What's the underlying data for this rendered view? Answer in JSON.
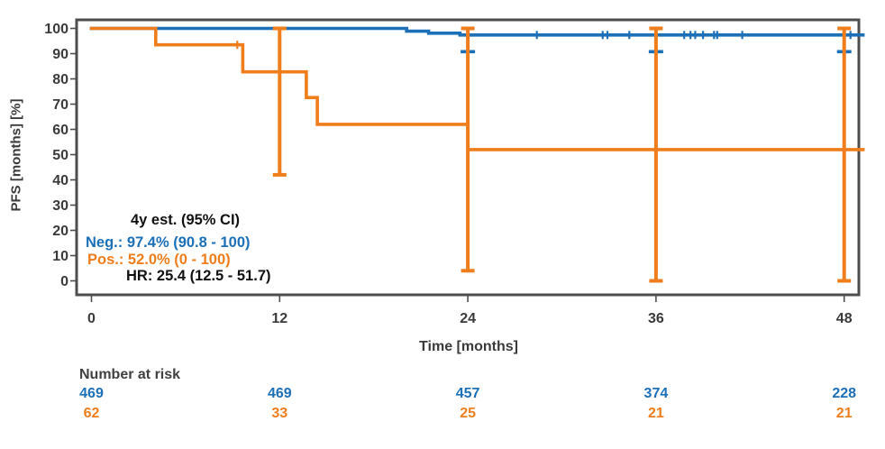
{
  "colors": {
    "neg": "#1b70b8",
    "pos": "#ef7d1b",
    "dark_text": "#111111",
    "axis_text": "#3a3a3a",
    "frame": "#4d4d4d",
    "footer_label": "#404040",
    "background": "#ffffff"
  },
  "annotation": {
    "title": "4y est. (95% CI)",
    "neg_line": "Neg.: 97.4% (90.8 - 100)",
    "pos_line": "Pos.:  52.0% (0 - 100)",
    "hr_line": "HR: 25.4 (12.5 - 51.7)"
  },
  "risk_table": {
    "label": "Number at risk",
    "times": [
      0,
      12,
      24,
      36,
      48
    ],
    "rows": [
      {
        "name": "Neg",
        "color": "#1b70b8",
        "values": [
          "469",
          "469",
          "457",
          "374",
          "228"
        ]
      },
      {
        "name": "Pos",
        "color": "#ef7d1b",
        "values": [
          "62",
          "33",
          "25",
          "21",
          "21"
        ]
      }
    ]
  },
  "chart_data": {
    "type": "line",
    "subtype": "kaplan-meier-step",
    "title": "",
    "xlabel": "Time [months]",
    "ylabel": "PFS [months] [%]",
    "xlim": [
      0,
      49.2
    ],
    "ylim": [
      0,
      100
    ],
    "xticks": [
      0,
      12,
      24,
      36,
      48
    ],
    "yticks": [
      0,
      10,
      20,
      30,
      40,
      50,
      60,
      70,
      80,
      90,
      100
    ],
    "grid": false,
    "legend_position": "none",
    "hazard_ratio": "25.4 (12.5 - 51.7)",
    "series": [
      {
        "name": "Neg.",
        "color": "#1b70b8",
        "estimate_4y": "97.4% (90.8 - 100)",
        "step_points": [
          [
            0,
            100
          ],
          [
            20.1,
            100
          ],
          [
            20.1,
            98.9
          ],
          [
            21.5,
            98.9
          ],
          [
            21.5,
            98.1
          ],
          [
            23.5,
            98.1
          ],
          [
            23.5,
            97.4
          ],
          [
            49.2,
            97.4
          ]
        ],
        "censor_marks": [
          [
            28.4,
            97.4
          ],
          [
            32.6,
            97.4
          ],
          [
            32.9,
            97.4
          ],
          [
            34.3,
            97.4
          ],
          [
            37.8,
            97.4
          ],
          [
            38.2,
            97.4
          ],
          [
            38.5,
            97.4
          ],
          [
            39.0,
            97.4
          ],
          [
            39.7,
            97.4
          ],
          [
            39.9,
            97.4
          ],
          [
            41.5,
            97.4
          ],
          [
            48.4,
            97.4
          ]
        ],
        "ci_dashes": [
          [
            24,
            90.8
          ],
          [
            36,
            90.8
          ],
          [
            48,
            90.8
          ]
        ],
        "error_bars": []
      },
      {
        "name": "Pos.",
        "color": "#ef7d1b",
        "estimate_4y": "52.0% (0 - 100)",
        "step_points": [
          [
            0,
            100
          ],
          [
            4.1,
            100
          ],
          [
            4.1,
            93.5
          ],
          [
            9.65,
            93.5
          ],
          [
            9.65,
            82.8
          ],
          [
            13.7,
            82.8
          ],
          [
            13.7,
            72.6
          ],
          [
            14.4,
            72.6
          ],
          [
            14.4,
            62
          ],
          [
            24,
            62
          ],
          [
            24,
            52
          ],
          [
            49.2,
            52
          ]
        ],
        "censor_marks": [
          [
            9.3,
            93.5
          ]
        ],
        "ci_dashes": [],
        "error_bars": [
          {
            "x": 12,
            "low": 42,
            "high": 100
          },
          {
            "x": 24,
            "low": 4,
            "high": 100
          },
          {
            "x": 36,
            "low": 0,
            "high": 100
          },
          {
            "x": 48,
            "low": 0,
            "high": 100
          }
        ]
      }
    ]
  }
}
